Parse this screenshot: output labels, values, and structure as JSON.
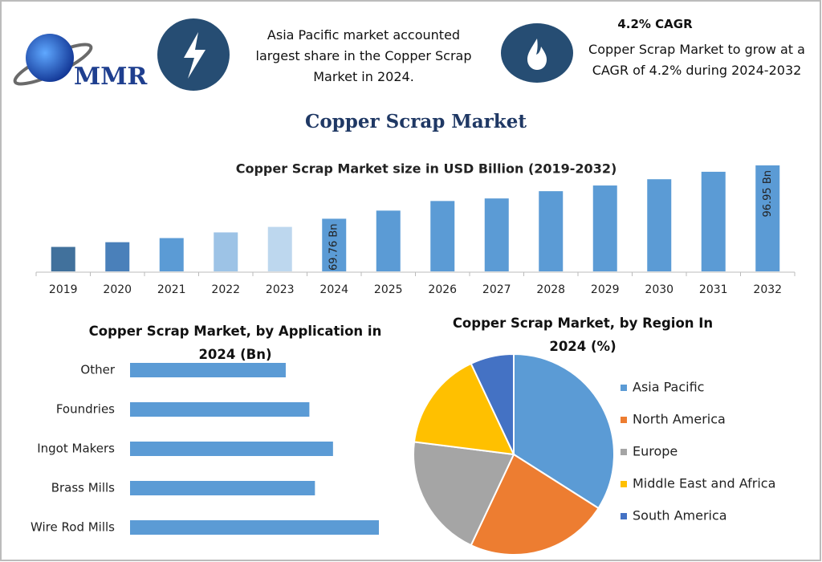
{
  "header": {
    "logo": "MMR",
    "note1": "Asia Pacific market accounted largest share in the Copper Scrap Market in 2024.",
    "note2_title": "4.2% CAGR",
    "note2": "Copper Scrap Market to grow at a CAGR of 4.2% during 2024-2032"
  },
  "title": "Copper Scrap Market",
  "chart_data": [
    {
      "type": "bar",
      "title": "Copper Scrap Market size in USD Billion (2019-2032)",
      "categories": [
        "2019",
        "2020",
        "2021",
        "2022",
        "2023",
        "2024",
        "2025",
        "2026",
        "2027",
        "2028",
        "2029",
        "2030",
        "2031",
        "2032"
      ],
      "values": [
        55.4,
        57.8,
        59.9,
        62.8,
        65.6,
        69.76,
        73.9,
        78.8,
        80.1,
        83.8,
        86.7,
        89.9,
        93.7,
        96.95
      ],
      "value_labels": [
        null,
        null,
        null,
        null,
        null,
        "69.76 Bn",
        null,
        null,
        null,
        null,
        null,
        null,
        null,
        "96.95 Bn"
      ],
      "colors": [
        "#41719c",
        "#4a80ba",
        "#5b9bd5",
        "#9dc3e6",
        "#bdd7ee",
        "#5b9bd5",
        "#5b9bd5",
        "#5b9bd5",
        "#5b9bd5",
        "#5b9bd5",
        "#5b9bd5",
        "#5b9bd5",
        "#5b9bd5",
        "#5b9bd5"
      ]
    },
    {
      "type": "hbar",
      "title": "Copper Scrap Market, by Application in 2024 (Bn)",
      "categories": [
        "Other",
        "Foundries",
        "Ingot Makers",
        "Brass Mills",
        "Wire Rod Mills"
      ],
      "values": [
        11.2,
        12.9,
        14.6,
        13.3,
        17.9
      ],
      "color": "#5b9bd5"
    },
    {
      "type": "pie",
      "title": "Copper Scrap Market, by Region In 2024 (%)",
      "categories": [
        "Asia Pacific",
        "North America",
        "Europe",
        "Middle East and Africa",
        "South America"
      ],
      "values": [
        34,
        23,
        20,
        16,
        7
      ],
      "colors": [
        "#5b9bd5",
        "#ed7d31",
        "#a5a5a5",
        "#ffc000",
        "#4472c4"
      ]
    }
  ]
}
